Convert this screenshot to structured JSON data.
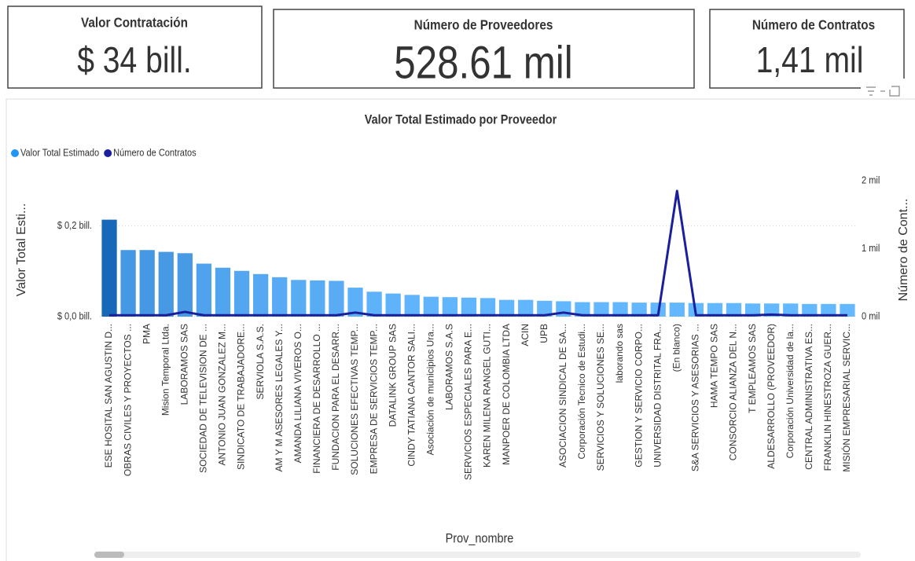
{
  "cards": [
    {
      "title": "Valor Contratación",
      "value": "$ 34 bill."
    },
    {
      "title": "Número de Proveedores",
      "value": "528.61 mil"
    },
    {
      "title": "Número de Contratos",
      "value": "1,41 mil"
    }
  ],
  "chart_data": {
    "type": "bar",
    "title": "Valor Total Estimado por Proveedor",
    "x_label": "Prov_nombre",
    "y_label": "Valor Total Esti...",
    "y2_label": "Número de Cont...",
    "categories": [
      "ESE HOSITAL SAN AGUSTIN D...",
      "OBRAS CIVILES Y PROYECTOS ...",
      "PMA",
      "Mision Temporal Ltda.",
      "LABORAMOS SAS",
      "SOCIEDAD DE TELEVISION DE ...",
      "ANTONIO JUAN GONZALEZ M...",
      "SINDICATO DE TRABAJADORE...",
      "SERVIOLA S.A.S.",
      "AM Y M ASESORES LEGALES Y...",
      "AMANDA LILIANA VIVEROS O...",
      "FINANCIERA DE DESARROLLO ...",
      "FUNDACION PARA EL DESARR...",
      "SOLUCIONES EFECTIVAS TEMP...",
      "EMPRESA DE SERVICIOS TEMP...",
      "DATALINK GROUP SAS",
      "CINDY TATIANA CANTOR SALI...",
      "Asociación de municipios Ura...",
      "LABORAMOS S.A.S",
      "SERVICIOS ESPECIALES PARA E...",
      "KAREN MILENA RANGEL GUTI...",
      "MANPOER DE COLOMBIA LTDA",
      "ACIN",
      "UPB",
      "ASOCIACION SINDICAL DE SA...",
      "Corporación Tecnico de Estudi...",
      "SERVICIOS Y SOLUCIONES SE...",
      "laborando sas",
      "GESTION Y SERVICIO CORPO...",
      "UNIVERSIDAD DISTRITAL FRA...",
      "(En blanco)",
      "S&A SERVICIOS Y ASESORIAS ...",
      "HAMA TEMPO SAS",
      "CONSORCIO ALIANZA DEL N...",
      "T EMPLEAMOS SAS",
      "ALDESARROLLO (PROVEEDOR)",
      "Corporación Universidad de la...",
      "CENTRAL ADMINISTRATIVA ES...",
      "FRANKLIN HINESTROZA GUER...",
      "MISIÓN EMPRESARIAL SERVIC..."
    ],
    "series": [
      {
        "name": "Valor Total Estimado",
        "color": "#2196f3",
        "color_scale": [
          "#1768b8",
          "#64b8ff"
        ],
        "values": [
          0.214,
          0.147,
          0.147,
          0.143,
          0.14,
          0.117,
          0.108,
          0.101,
          0.094,
          0.087,
          0.081,
          0.08,
          0.079,
          0.064,
          0.055,
          0.051,
          0.048,
          0.044,
          0.043,
          0.042,
          0.041,
          0.037,
          0.037,
          0.035,
          0.034,
          0.032,
          0.032,
          0.032,
          0.031,
          0.031,
          0.031,
          0.03,
          0.03,
          0.03,
          0.029,
          0.029,
          0.029,
          0.028,
          0.028,
          0.028
        ]
      },
      {
        "name": "Número de Contratos",
        "color": "#1a1f9c",
        "axis": "y2",
        "values": [
          0.02,
          0.02,
          0.02,
          0.02,
          0.07,
          0.02,
          0.02,
          0.02,
          0.02,
          0.02,
          0.02,
          0.02,
          0.02,
          0.06,
          0.02,
          0.02,
          0.02,
          0.02,
          0.02,
          0.02,
          0.02,
          0.02,
          0.02,
          0.02,
          0.06,
          0.02,
          0.02,
          0.02,
          0.02,
          0.02,
          1.85,
          0.02,
          0.02,
          0.02,
          0.02,
          0.03,
          0.02,
          0.02,
          0.02,
          0.02
        ]
      }
    ],
    "ylim": [
      0,
      0.3
    ],
    "yticks": [
      {
        "value": 0,
        "label": "$ 0,0 bill."
      },
      {
        "value": 0.2,
        "label": "$ 0,2 bill."
      }
    ],
    "y2lim": [
      0,
      2
    ],
    "y2ticks": [
      {
        "value": 0,
        "label": "0 mil"
      },
      {
        "value": 1,
        "label": "1 mil"
      },
      {
        "value": 2,
        "label": "2 mil"
      }
    ],
    "grid": true,
    "legend": "top-left"
  }
}
